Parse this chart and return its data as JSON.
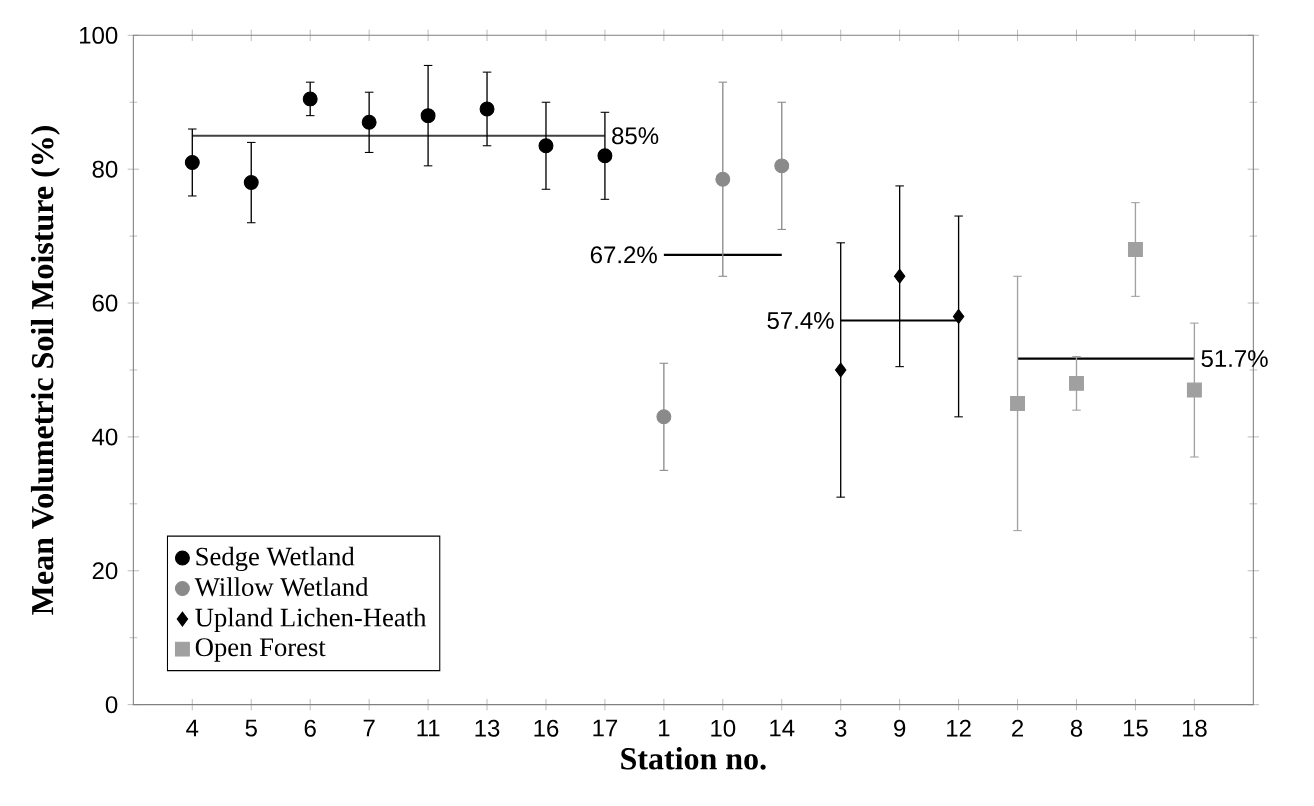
{
  "chart_data": {
    "type": "scatter",
    "xlabel": "Station no.",
    "ylabel": "Mean Volumetric Soil Moisture (%)",
    "categories": [
      "4",
      "5",
      "6",
      "7",
      "11",
      "13",
      "16",
      "17",
      "1",
      "10",
      "14",
      "3",
      "9",
      "12",
      "2",
      "8",
      "15",
      "18"
    ],
    "ylim": [
      0,
      100
    ],
    "yticks": [
      0,
      20,
      40,
      60,
      80,
      100
    ],
    "legend": "bottom left",
    "series": [
      {
        "name": "Sedge Wetland",
        "color": "#000000",
        "marker": "circle",
        "values": [
          81,
          78,
          90.5,
          87,
          88,
          89,
          83.5,
          82,
          null,
          null,
          null,
          null,
          null,
          null,
          null,
          null,
          null,
          null
        ],
        "errors": [
          5,
          6,
          2.5,
          4.5,
          7.5,
          5.5,
          6.5,
          6.5,
          null,
          null,
          null,
          null,
          null,
          null,
          null,
          null,
          null,
          null
        ]
      },
      {
        "name": "Willow Wetland",
        "color": "#8a8a8a",
        "marker": "circle",
        "values": [
          null,
          null,
          null,
          null,
          null,
          null,
          null,
          null,
          43,
          78.5,
          80.5,
          null,
          null,
          null,
          null,
          null,
          null,
          null
        ],
        "errors": [
          null,
          null,
          null,
          null,
          null,
          null,
          null,
          null,
          8,
          14.5,
          9.5,
          null,
          null,
          null,
          null,
          null,
          null,
          null
        ]
      },
      {
        "name": "Upland Lichen-Heath",
        "color": "#000000",
        "marker": "diamond",
        "values": [
          null,
          null,
          null,
          null,
          null,
          null,
          null,
          null,
          null,
          null,
          null,
          50,
          64,
          58,
          null,
          null,
          null,
          null
        ],
        "errors": [
          null,
          null,
          null,
          null,
          null,
          null,
          null,
          null,
          null,
          null,
          null,
          19,
          13.5,
          15,
          null,
          null,
          null,
          null
        ]
      },
      {
        "name": "Open Forest",
        "color": "#a0a0a0",
        "marker": "square",
        "values": [
          null,
          null,
          null,
          null,
          null,
          null,
          null,
          null,
          null,
          null,
          null,
          null,
          null,
          null,
          45,
          48,
          68,
          47
        ],
        "errors": [
          null,
          null,
          null,
          null,
          null,
          null,
          null,
          null,
          null,
          null,
          null,
          null,
          null,
          null,
          19,
          4,
          7,
          10
        ]
      },
      {
        "type": "line",
        "color": "#404040",
        "values": [
          85,
          85,
          85,
          85,
          85,
          85,
          85,
          85,
          null,
          null,
          null,
          null,
          null,
          null,
          null,
          null,
          null,
          null
        ]
      },
      {
        "type": "line",
        "color": "#000000",
        "values": [
          null,
          null,
          null,
          null,
          null,
          null,
          null,
          null,
          67.2,
          67.2,
          67.2,
          null,
          null,
          null,
          null,
          null,
          null,
          null
        ]
      },
      {
        "type": "line",
        "color": "#000000",
        "values": [
          null,
          null,
          null,
          null,
          null,
          null,
          null,
          null,
          null,
          null,
          null,
          57.4,
          57.4,
          57.4,
          null,
          null,
          null,
          null
        ]
      },
      {
        "type": "line",
        "color": "#000000",
        "values": [
          null,
          null,
          null,
          null,
          null,
          null,
          null,
          null,
          null,
          null,
          null,
          null,
          null,
          null,
          51.7,
          51.7,
          51.7,
          51.7
        ]
      }
    ],
    "annotations": [
      {
        "text": "85%",
        "x": "17",
        "y": 85
      },
      {
        "text": "67.2%",
        "x": "1",
        "y": 67.2
      },
      {
        "text": "57.4%",
        "x": "3",
        "y": 57.4
      },
      {
        "text": "51.7%",
        "x": "18",
        "y": 51.7
      }
    ]
  }
}
